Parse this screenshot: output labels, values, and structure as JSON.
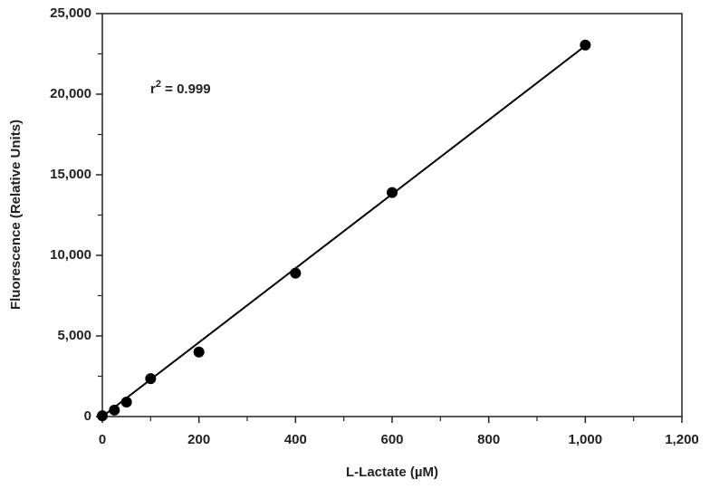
{
  "chart_data": {
    "type": "scatter",
    "x_label": "L-Lactate (µM)",
    "y_label": "Fluorescence (Relative Units)",
    "annotation": {
      "base": "r",
      "superscript": "2",
      "rest": " = 0.999"
    },
    "series": [
      {
        "color": "#000000",
        "x": [
          0,
          25,
          50,
          100,
          200,
          400,
          600,
          1000
        ],
        "values": [
          50,
          400,
          900,
          2350,
          4000,
          8900,
          13900,
          23050
        ]
      }
    ],
    "fit_line": {
      "color": "#000000",
      "x": [
        0,
        1000
      ],
      "values": [
        0,
        23000
      ]
    },
    "xlim": [
      0,
      1200
    ],
    "xticks": [
      0,
      200,
      400,
      600,
      800,
      {
        "value": 1000,
        "label": "1,000"
      },
      {
        "value": 1200,
        "label": "1,200"
      }
    ],
    "xminorticks": [
      100,
      300,
      500,
      700,
      900,
      1100
    ],
    "ylim": [
      0,
      25000
    ],
    "yticks": [
      0,
      {
        "value": 5000,
        "label": "5,000"
      },
      {
        "value": 10000,
        "label": "10,000"
      },
      {
        "value": 15000,
        "label": "15,000"
      },
      {
        "value": 20000,
        "label": "20,000"
      },
      {
        "value": 25000,
        "label": "25,000"
      }
    ],
    "yminorticks": [
      2500,
      7500,
      12500,
      17500,
      22500
    ],
    "grid": false
  }
}
